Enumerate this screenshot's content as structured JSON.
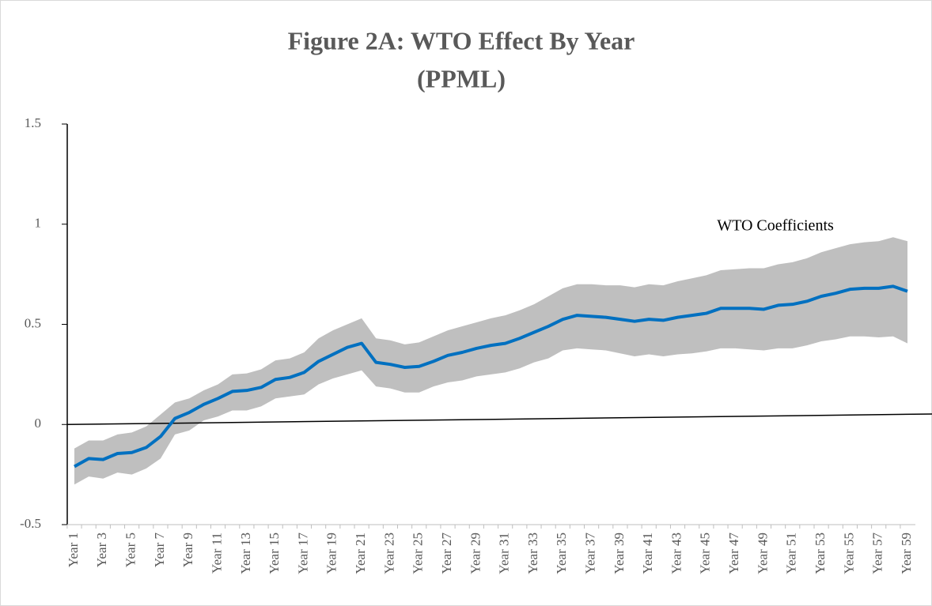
{
  "chart_data": {
    "type": "line",
    "title": [
      "Figure 2A: WTO Effect By Year",
      "(PPML)"
    ],
    "categories": [
      "Year 1",
      null,
      "Year 3",
      null,
      "Year 5",
      null,
      "Year 7",
      null,
      "Year 9",
      null,
      "Year 11",
      null,
      "Year 13",
      null,
      "Year 15",
      null,
      "Year 17",
      null,
      "Year 19",
      null,
      "Year 21",
      null,
      "Year 23",
      null,
      "Year 25",
      null,
      "Year 27",
      null,
      "Year 29",
      null,
      "Year 31",
      null,
      "Year 33",
      null,
      "Year 35",
      null,
      "Year 37",
      null,
      "Year 39",
      null,
      "Year 41",
      null,
      "Year 43",
      null,
      "Year 45",
      null,
      "Year 47",
      null,
      "Year 49",
      null,
      "Year 51",
      null,
      "Year 53",
      null,
      "Year 55",
      null,
      "Year 57",
      null,
      "Year 59"
    ],
    "series": [
      {
        "name": "WTO Coefficients",
        "color": "#0070c0",
        "band_color": "#bfbfbf",
        "values": [
          -0.21,
          -0.17,
          -0.175,
          -0.145,
          -0.14,
          -0.115,
          -0.06,
          0.03,
          0.06,
          0.1,
          0.13,
          0.165,
          0.17,
          0.185,
          0.225,
          0.235,
          0.26,
          0.315,
          0.35,
          0.385,
          0.405,
          0.31,
          0.3,
          0.285,
          0.29,
          0.315,
          0.345,
          0.36,
          0.38,
          0.395,
          0.405,
          0.43,
          0.46,
          0.49,
          0.525,
          0.545,
          0.54,
          0.535,
          0.525,
          0.515,
          0.525,
          0.52,
          0.535,
          0.545,
          0.555,
          0.58,
          0.58,
          0.58,
          0.575,
          0.595,
          0.6,
          0.615,
          0.64,
          0.655,
          0.675,
          0.68,
          0.68,
          0.69,
          0.665
        ],
        "upper": [
          -0.12,
          -0.08,
          -0.08,
          -0.05,
          -0.04,
          -0.01,
          0.05,
          0.11,
          0.13,
          0.17,
          0.2,
          0.25,
          0.255,
          0.275,
          0.32,
          0.33,
          0.36,
          0.43,
          0.47,
          0.5,
          0.53,
          0.43,
          0.42,
          0.4,
          0.41,
          0.44,
          0.47,
          0.49,
          0.51,
          0.53,
          0.545,
          0.57,
          0.6,
          0.64,
          0.68,
          0.7,
          0.7,
          0.695,
          0.695,
          0.685,
          0.7,
          0.695,
          0.715,
          0.73,
          0.745,
          0.77,
          0.775,
          0.78,
          0.78,
          0.8,
          0.81,
          0.83,
          0.86,
          0.88,
          0.9,
          0.91,
          0.915,
          0.935,
          0.915
        ],
        "lower": [
          -0.3,
          -0.26,
          -0.27,
          -0.24,
          -0.25,
          -0.22,
          -0.17,
          -0.05,
          -0.03,
          0.02,
          0.04,
          0.07,
          0.07,
          0.09,
          0.13,
          0.14,
          0.15,
          0.2,
          0.23,
          0.25,
          0.27,
          0.19,
          0.18,
          0.16,
          0.16,
          0.19,
          0.21,
          0.22,
          0.24,
          0.25,
          0.26,
          0.28,
          0.31,
          0.33,
          0.37,
          0.38,
          0.375,
          0.37,
          0.355,
          0.34,
          0.35,
          0.34,
          0.35,
          0.355,
          0.365,
          0.38,
          0.38,
          0.375,
          0.37,
          0.38,
          0.38,
          0.395,
          0.415,
          0.425,
          0.44,
          0.44,
          0.435,
          0.44,
          0.405
        ]
      }
    ],
    "ylim": [
      -0.5,
      1.5
    ],
    "yticks": [
      -0.5,
      0,
      0.5,
      1,
      1.5
    ]
  }
}
